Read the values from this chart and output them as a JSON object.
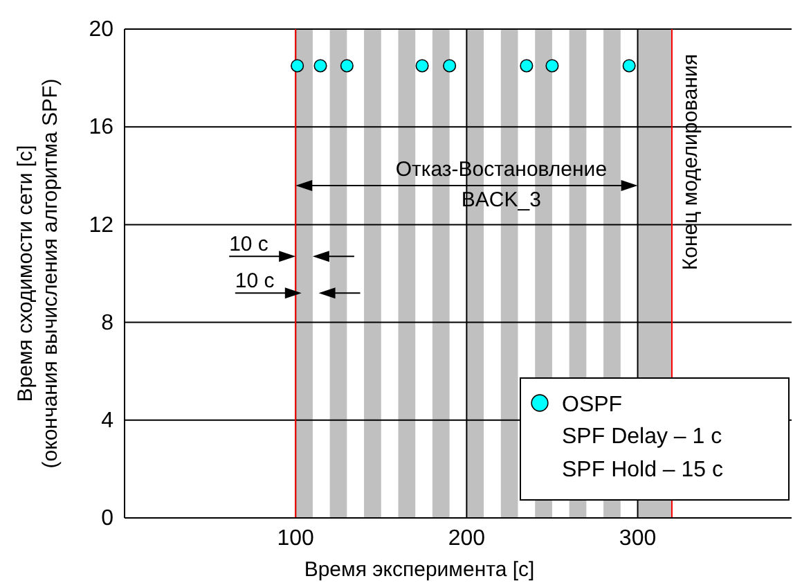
{
  "chart_data": {
    "type": "scatter",
    "xlabel": "Время эксперимента [с]",
    "ylabel": "Время сходимости сети [с]\n(окончания вычисления алгоритма SPF)",
    "xlim": [
      0,
      390
    ],
    "xticks": [
      100,
      200,
      300
    ],
    "ylim": [
      0,
      20
    ],
    "yticks": [
      0,
      4,
      8,
      12,
      16,
      20
    ],
    "grid": true,
    "legend": "bottom right",
    "marker": "circle",
    "series": [
      {
        "name": "OSPF",
        "color": "#00ffff",
        "x": [
          101,
          114.5,
          130,
          174,
          190,
          235,
          250,
          295
        ],
        "values": [
          18.5,
          18.5,
          18.5,
          18.5,
          18.5,
          18.5,
          18.5,
          18.5
        ]
      }
    ],
    "bands": [
      {
        "axis": "x",
        "from": 100,
        "to": 110,
        "color": "#c0c0c0"
      },
      {
        "axis": "x",
        "from": 120,
        "to": 130,
        "color": "#c0c0c0"
      },
      {
        "axis": "x",
        "from": 140,
        "to": 150,
        "color": "#c0c0c0"
      },
      {
        "axis": "x",
        "from": 160,
        "to": 170,
        "color": "#c0c0c0"
      },
      {
        "axis": "x",
        "from": 180,
        "to": 190,
        "color": "#c0c0c0"
      },
      {
        "axis": "x",
        "from": 200,
        "to": 210,
        "color": "#c0c0c0"
      },
      {
        "axis": "x",
        "from": 220,
        "to": 230,
        "color": "#c0c0c0"
      },
      {
        "axis": "x",
        "from": 240,
        "to": 250,
        "color": "#c0c0c0"
      },
      {
        "axis": "x",
        "from": 260,
        "to": 270,
        "color": "#c0c0c0"
      },
      {
        "axis": "x",
        "from": 280,
        "to": 290,
        "color": "#c0c0c0"
      },
      {
        "axis": "x",
        "from": 300,
        "to": 320,
        "color": "#c0c0c0"
      }
    ],
    "ref_lines": [
      {
        "axis": "x",
        "value": 100,
        "label": null,
        "color": "#ff0000"
      },
      {
        "axis": "x",
        "value": 320,
        "label": "Конец моделирования",
        "color": "#ff0000"
      }
    ],
    "annotations": [
      "Отказ-Востановление\nBACK_3",
      "10 с",
      "10 с",
      "SPF Delay – 1 с",
      "SPF Hold – 15 с"
    ]
  }
}
